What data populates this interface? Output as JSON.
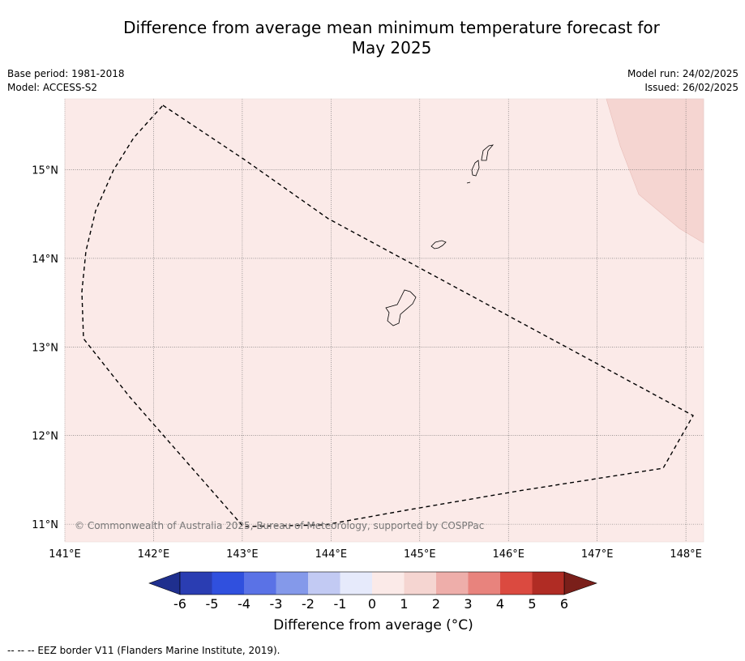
{
  "title": {
    "line1": "Difference from average mean minimum temperature forecast for",
    "line2": "May 2025"
  },
  "meta": {
    "base_period": "Base period: 1981-2018",
    "model": "Model: ACCESS-S2",
    "model_run": "Model run: 24/02/2025",
    "issued": "Issued: 26/02/2025"
  },
  "map": {
    "lon_ticks": [
      "141°E",
      "142°E",
      "143°E",
      "144°E",
      "145°E",
      "146°E",
      "147°E",
      "148°E"
    ],
    "lat_ticks": [
      "15°N",
      "14°N",
      "13°N",
      "12°N",
      "11°N"
    ],
    "lon_range": [
      141,
      148.2
    ],
    "lat_range": [
      10.8,
      15.8
    ],
    "background_class": "0 to 1",
    "background_color": "#fbeae8",
    "warmer_region_class": "1 to 2",
    "warmer_region_color": "#f5d5d1",
    "copyright": "© Commonwealth of Australia 2025, Bureau of Meteorology, supported by COSPPac",
    "eez_color": "#000000"
  },
  "colorbar": {
    "tick_labels": [
      "-6",
      "-5",
      "-4",
      "-3",
      "-2",
      "-1",
      "0",
      "1",
      "2",
      "3",
      "4",
      "5",
      "6"
    ],
    "colors": [
      "#1f2f8e",
      "#2a3db2",
      "#3050de",
      "#5a72e6",
      "#8499ea",
      "#c2caf3",
      "#e6eafb",
      "#fbeae8",
      "#f5d5d1",
      "#eeaeaa",
      "#e8837d",
      "#db4a40",
      "#b02c24",
      "#7a1f1a"
    ],
    "label": "Difference from average (°C)"
  },
  "footnote": "--  --  -- EEZ border V11 (Flanders Marine Institute, 2019)."
}
